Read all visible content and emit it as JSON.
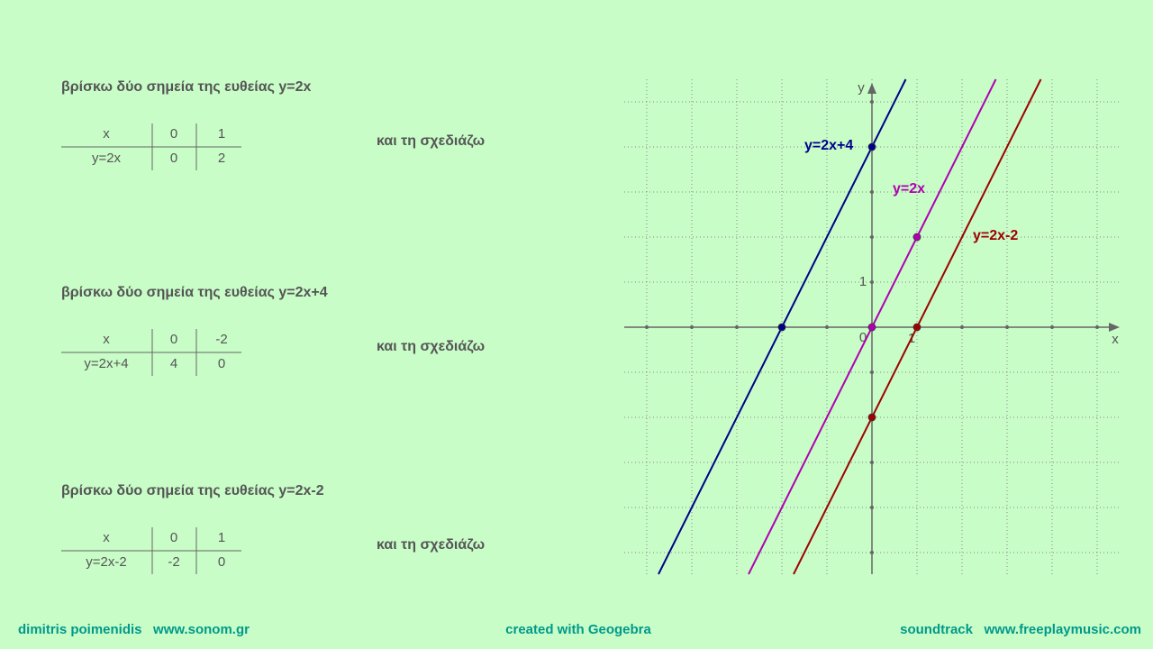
{
  "sections": [
    {
      "heading": "βρίσκω δύο σημεία της ευθείας y=2x",
      "table": {
        "rows": [
          [
            "x",
            "0",
            "1"
          ],
          [
            "y=2x",
            "0",
            "2"
          ]
        ]
      },
      "action": "και τη σχεδιάζω"
    },
    {
      "heading": "βρίσκω δύο σημεία της ευθείας y=2x+4",
      "table": {
        "rows": [
          [
            "x",
            "0",
            "-2"
          ],
          [
            "y=2x+4",
            "4",
            "0"
          ]
        ]
      },
      "action": "και τη σχεδιάζω"
    },
    {
      "heading": "βρίσκω δύο σημεία της ευθείας y=2x-2",
      "table": {
        "rows": [
          [
            "x",
            "0",
            "1"
          ],
          [
            "y=2x-2",
            "-2",
            "0"
          ]
        ]
      },
      "action": "και τη σχεδιάζω"
    }
  ],
  "graph": {
    "x_label": "x",
    "y_label": "y",
    "origin_label": "0",
    "unit_label": "1",
    "lines": [
      {
        "name": "y=2x+4",
        "color": "#00008b",
        "points": [
          [
            0,
            4
          ],
          [
            -2,
            0
          ]
        ]
      },
      {
        "name": "y=2x",
        "color": "#b000b0",
        "points": [
          [
            0,
            0
          ],
          [
            1,
            2
          ]
        ]
      },
      {
        "name": "y=2x-2",
        "color": "#a00000",
        "points": [
          [
            0,
            -2
          ],
          [
            1,
            0
          ]
        ]
      }
    ]
  },
  "footer": {
    "left": "dimitris poimenidis   www.sonom.gr",
    "center": "created with Geogebra",
    "right": "soundtrack   www.freeplaymusic.com"
  }
}
